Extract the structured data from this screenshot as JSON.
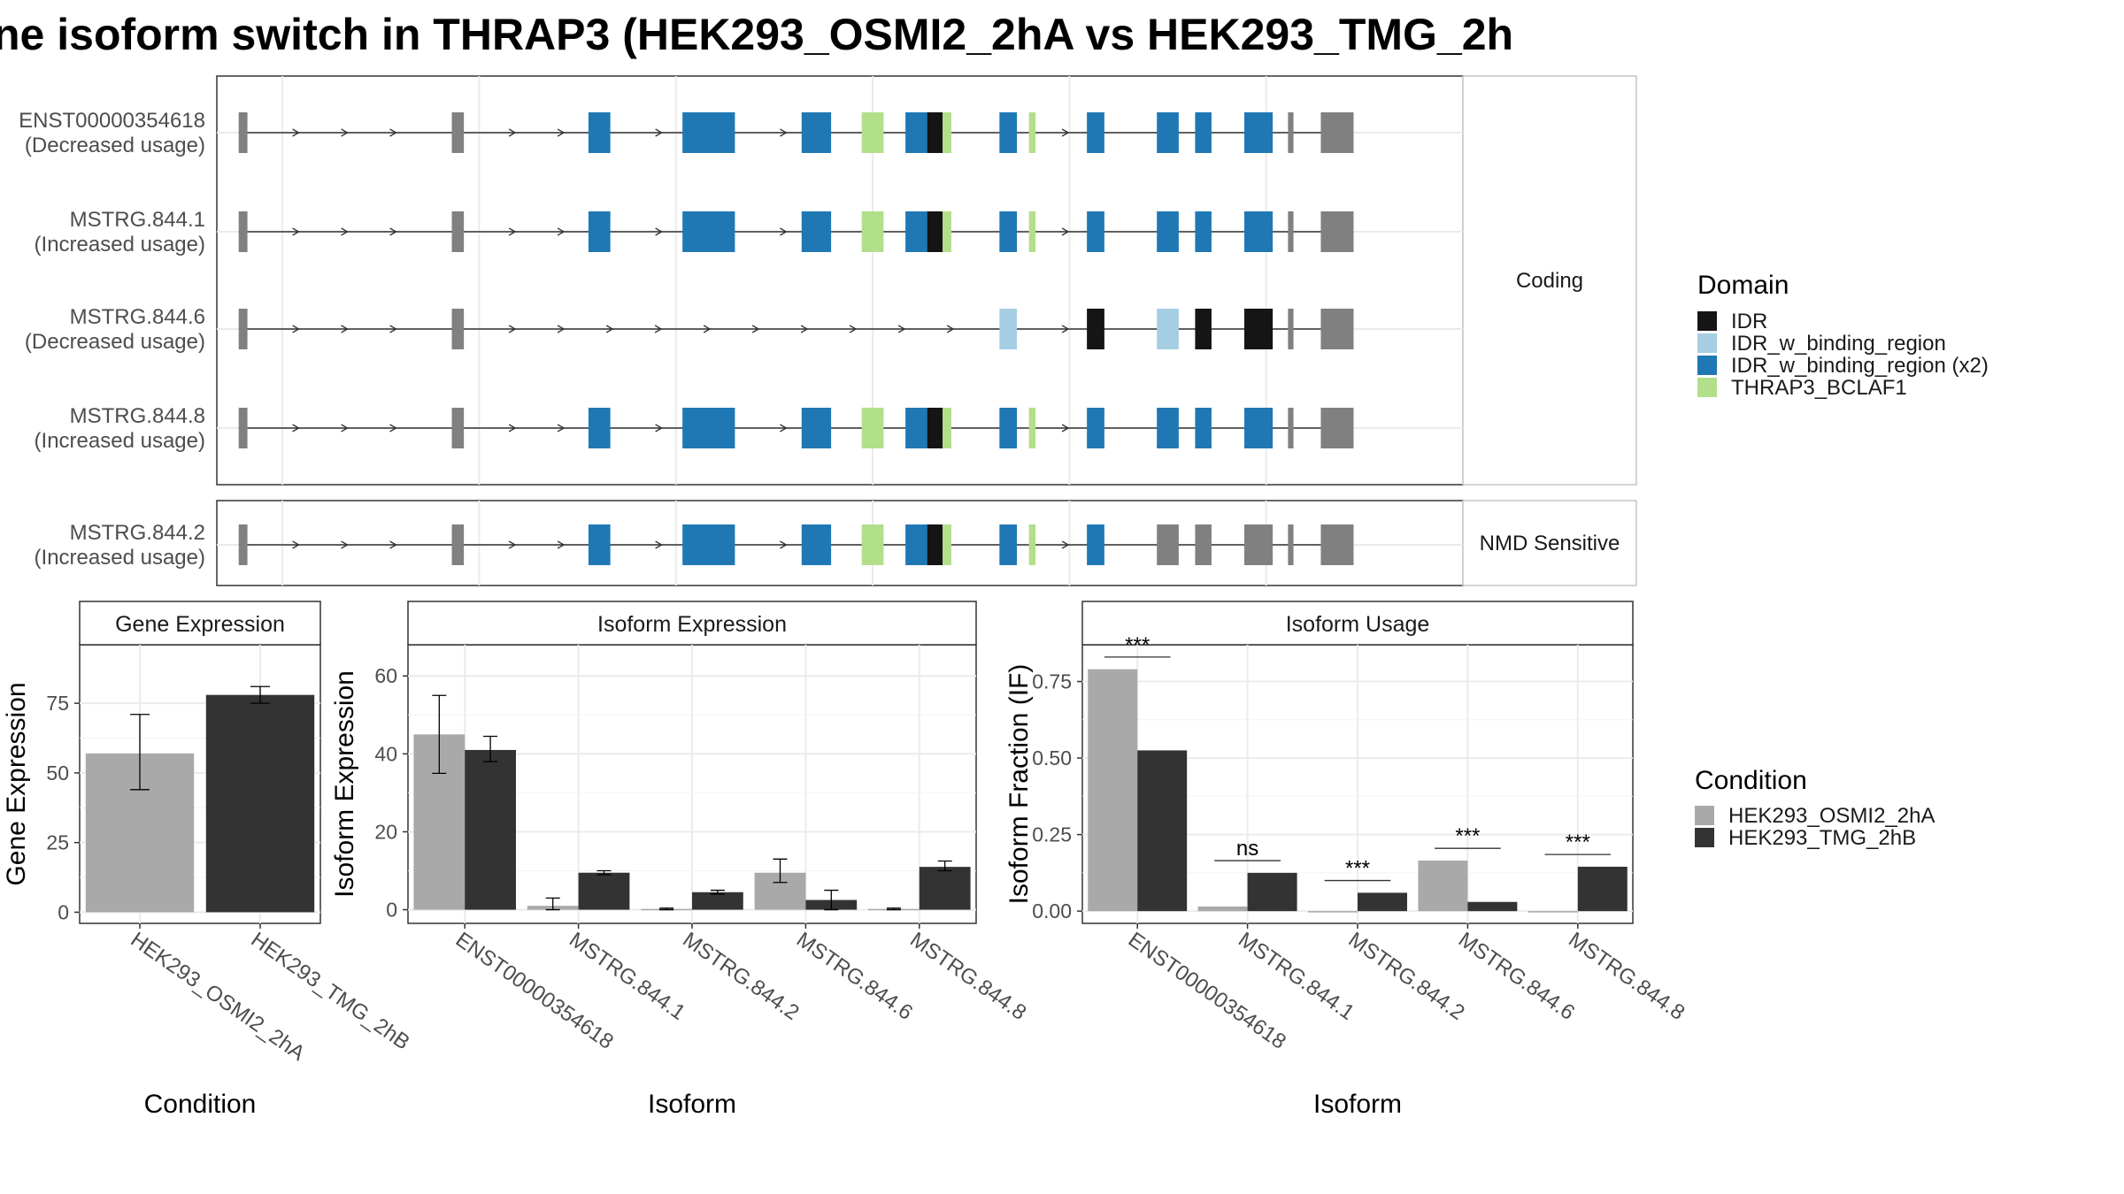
{
  "title": "ne isoform switch in THRAP3 (HEK293_OSMI2_2hA vs HEK293_TMG_2h",
  "colors": {
    "IDR": "#151515",
    "IDR_w_binding_region": "#a6cee3",
    "IDR_w_binding_region (x2)": "#1f78b4",
    "THRAP3_BCLAF1": "#b2df8a",
    "utr": "#808080",
    "cond1": "#a9a9a9",
    "cond2": "#333333"
  },
  "transcripts": {
    "xlim": [
      0,
      1140
    ],
    "exons": [
      [
        20,
        28
      ],
      [
        215,
        226
      ],
      [
        340,
        360
      ],
      [
        426,
        474
      ],
      [
        535,
        562
      ],
      [
        590,
        610
      ],
      [
        630,
        664
      ],
      [
        716,
        732
      ],
      [
        796,
        812
      ],
      [
        860,
        880
      ],
      [
        895,
        910
      ],
      [
        940,
        966
      ],
      [
        980,
        985
      ],
      [
        1010,
        1040
      ]
    ],
    "panels": [
      {
        "label": "Coding",
        "rows": [
          {
            "id": "ENST00000354618",
            "usage": "(Decreased usage)",
            "exonIdx": [
              0,
              1,
              2,
              3,
              4,
              5,
              6,
              7,
              8,
              9,
              10,
              11,
              12,
              13
            ],
            "color": "IDR_w_binding_region (x2)",
            "pattern": "full"
          },
          {
            "id": "MSTRG.844.1",
            "usage": "(Increased usage)",
            "exonIdx": [
              0,
              1,
              2,
              3,
              4,
              5,
              6,
              7,
              8,
              9,
              10,
              11,
              12,
              13
            ],
            "color": "IDR_w_binding_region (x2)",
            "pattern": "full-alt"
          },
          {
            "id": "MSTRG.844.6",
            "usage": "(Decreased usage)",
            "exonIdx": [
              0,
              1,
              7,
              8,
              9,
              10,
              11,
              12,
              13
            ],
            "color": "IDR_w_binding_region",
            "pattern": "short"
          },
          {
            "id": "MSTRG.844.8",
            "usage": "(Increased usage)",
            "exonIdx": [
              0,
              1,
              2,
              3,
              4,
              5,
              6,
              7,
              8,
              9,
              10,
              11,
              12,
              13
            ],
            "color": "IDR_w_binding_region (x2)",
            "pattern": "full-end"
          }
        ]
      },
      {
        "label": "NMD Sensitive",
        "rows": [
          {
            "id": "MSTRG.844.2",
            "usage": "(Increased usage)",
            "exonIdx": [
              0,
              1,
              2,
              3,
              4,
              5,
              6,
              7,
              8,
              9,
              10,
              11,
              12,
              13
            ],
            "color": "IDR_w_binding_region (x2)",
            "pattern": "nmd"
          }
        ]
      }
    ]
  },
  "legend_domain": {
    "title": "Domain",
    "items": [
      "IDR",
      "IDR_w_binding_region",
      "IDR_w_binding_region (x2)",
      "THRAP3_BCLAF1"
    ]
  },
  "legend_condition": {
    "title": "Condition",
    "items": [
      "HEK293_OSMI2_2hA",
      "HEK293_TMG_2hB"
    ]
  },
  "chart_data": [
    {
      "type": "bar",
      "title": "Gene Expression",
      "xlabel": "Condition",
      "ylabel": "Gene Expression",
      "categories": [
        "HEK293_OSMI2_2hA",
        "HEK293_TMG_2hB"
      ],
      "values": [
        57,
        78
      ],
      "errors": [
        [
          44,
          71
        ],
        [
          75,
          81
        ]
      ],
      "ylim": [
        -4,
        96
      ],
      "yticks": [
        0,
        25,
        50,
        75
      ]
    },
    {
      "type": "bar",
      "title": "Isoform Expression",
      "xlabel": "Isoform",
      "ylabel": "Isoform Expression",
      "categories": [
        "ENST00000354618",
        "MSTRG.844.1",
        "MSTRG.844.2",
        "MSTRG.844.6",
        "MSTRG.844.8"
      ],
      "series": [
        {
          "name": "HEK293_OSMI2_2hA",
          "values": [
            45,
            1,
            0.2,
            9.5,
            0.2
          ],
          "errors": [
            [
              35,
              55
            ],
            [
              0,
              3
            ],
            [
              0,
              0.4
            ],
            [
              7,
              13
            ],
            [
              0,
              0.4
            ]
          ]
        },
        {
          "name": "HEK293_TMG_2hB",
          "values": [
            41,
            9.5,
            4.5,
            2.5,
            11
          ],
          "errors": [
            [
              38,
              44.5
            ],
            [
              9,
              10
            ],
            [
              4,
              5
            ],
            [
              0,
              5
            ],
            [
              10,
              12.5
            ]
          ]
        }
      ],
      "ylim": [
        -3.5,
        68
      ],
      "yticks": [
        0,
        20,
        40,
        60
      ]
    },
    {
      "type": "bar",
      "title": "Isoform Usage",
      "xlabel": "Isoform",
      "ylabel": "Isoform Fraction (IF)",
      "categories": [
        "ENST00000354618",
        "MSTRG.844.1",
        "MSTRG.844.2",
        "MSTRG.844.6",
        "MSTRG.844.8"
      ],
      "series": [
        {
          "name": "HEK293_OSMI2_2hA",
          "values": [
            0.79,
            0.015,
            0.0,
            0.165,
            0.0
          ]
        },
        {
          "name": "HEK293_TMG_2hB",
          "values": [
            0.525,
            0.125,
            0.06,
            0.03,
            0.145
          ]
        }
      ],
      "significance": [
        "***",
        "ns",
        "***",
        "***",
        "***"
      ],
      "sig_y": [
        0.83,
        0.165,
        0.1,
        0.205,
        0.185
      ],
      "ylim": [
        -0.04,
        0.87
      ],
      "yticks": [
        0,
        0.25,
        0.5,
        0.75
      ],
      "ytick_labels": [
        "0.00",
        "0.25",
        "0.50",
        "0.75"
      ]
    }
  ]
}
